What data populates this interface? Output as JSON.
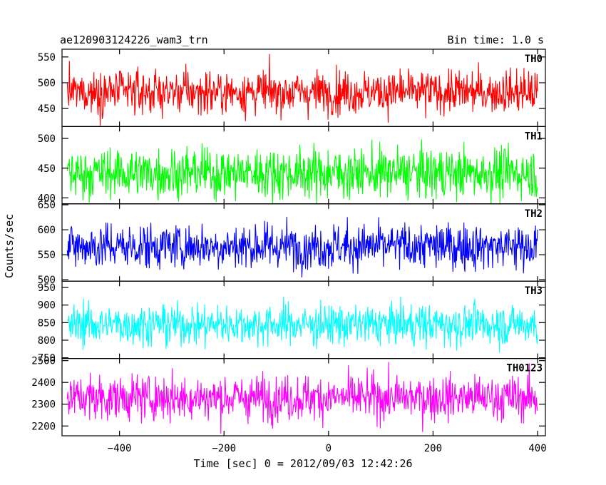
{
  "header": {
    "obs_id": "ae120903124226_wam3_trn",
    "bin_time": "Bin time: 1.0 s"
  },
  "chart_data": {
    "type": "line",
    "xlabel": "Time [sec] 0 = 2012/09/03 12:42:26",
    "ylabel": "Counts/sec",
    "xlim": [
      -510,
      415
    ],
    "x_ticks": [
      -400,
      -200,
      0,
      200,
      400
    ],
    "x_tick_labels": [
      "−400",
      "−200",
      "0",
      "200",
      "400"
    ],
    "x_step": 1.0,
    "grid": false,
    "legend": "none",
    "series": [
      {
        "name": "TH0",
        "color": "#ff0000",
        "mean": 482,
        "spread": 21,
        "ylim": [
          415,
          565
        ],
        "y_ticks": [
          450,
          500,
          550
        ],
        "x_range": [
          -500,
          400
        ]
      },
      {
        "name": "TH1",
        "color": "#00ff00",
        "mean": 442,
        "spread": 21,
        "ylim": [
          390,
          520
        ],
        "y_ticks": [
          400,
          450,
          500
        ],
        "x_range": [
          -500,
          400
        ]
      },
      {
        "name": "TH2",
        "color": "#0000ff",
        "mean": 567,
        "spread": 23,
        "ylim": [
          497,
          652
        ],
        "y_ticks": [
          500,
          550,
          600,
          650
        ],
        "x_range": [
          -500,
          400
        ]
      },
      {
        "name": "TH3",
        "color": "#00ffff",
        "mean": 845,
        "spread": 29,
        "ylim": [
          748,
          968
        ],
        "y_ticks": [
          750,
          800,
          850,
          900,
          950
        ],
        "x_range": [
          -500,
          400
        ]
      },
      {
        "name": "TH0123",
        "color": "#ff00ff",
        "mean": 2330,
        "spread": 52,
        "ylim": [
          2155,
          2510
        ],
        "y_ticks": [
          2200,
          2300,
          2400,
          2500
        ],
        "x_range": [
          -500,
          400
        ]
      }
    ]
  }
}
